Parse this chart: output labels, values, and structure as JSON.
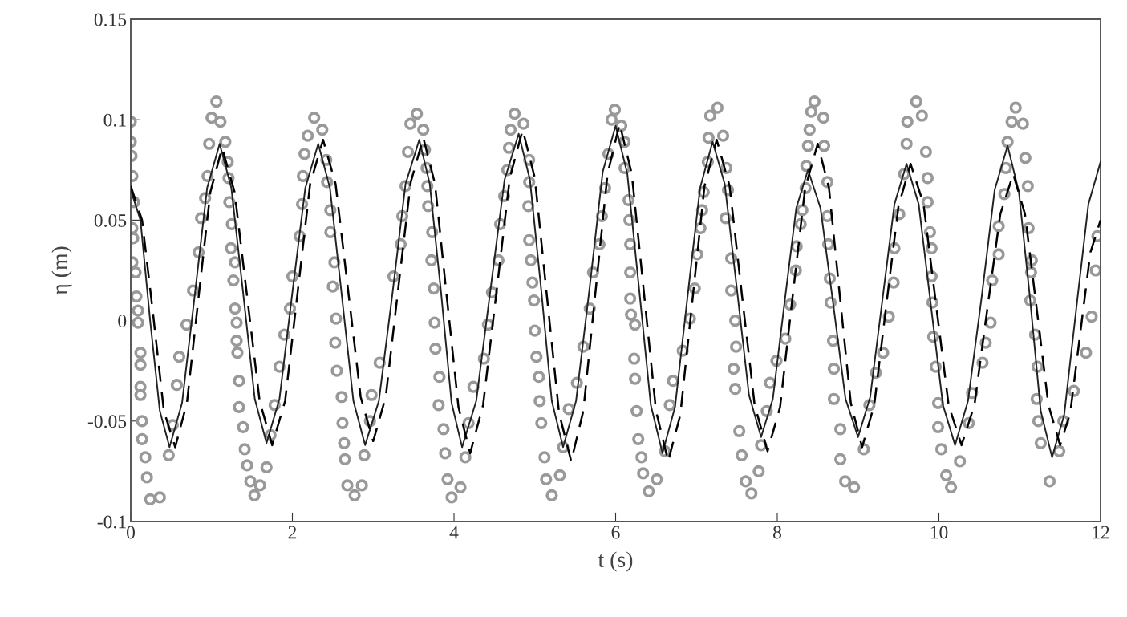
{
  "chart_data": {
    "type": "line",
    "xlabel": "t (s)",
    "ylabel": "η (m)",
    "xlim": [
      0,
      12
    ],
    "xticks": [
      0,
      2,
      4,
      6,
      8,
      10,
      12
    ],
    "ylim": [
      -0.1,
      0.15
    ],
    "yticks": [
      -0.1,
      -0.05,
      0,
      0.05,
      0.1,
      0.15
    ],
    "grid": false,
    "series": [
      {
        "type": "scatter",
        "marker": "circle",
        "color": "#999999",
        "x": [
          0,
          0.0,
          0.01,
          0.02,
          0.04,
          0.02,
          0.03,
          0.02,
          0.06,
          0.07,
          0.09,
          0.09,
          0.12,
          0.12,
          0.12,
          0.12,
          0.14,
          0.14,
          0.18,
          0.2,
          0.24,
          0.36,
          0.47,
          0.52,
          0.57,
          0.6,
          0.69,
          0.77,
          0.84,
          0.87,
          0.92,
          0.95,
          0.97,
          1.0,
          1.06,
          1.11,
          1.17,
          1.2,
          1.21,
          1.22,
          1.25,
          1.24,
          1.29,
          1.27,
          1.29,
          1.31,
          1.31,
          1.32,
          1.34,
          1.34,
          1.39,
          1.41,
          1.44,
          1.48,
          1.6,
          1.53,
          1.68,
          1.73,
          1.78,
          1.84,
          1.9,
          1.97,
          2.0,
          2.09,
          2.12,
          2.13,
          2.15,
          2.19,
          2.27,
          2.37,
          2.42,
          2.43,
          2.47,
          2.47,
          2.52,
          2.5,
          2.54,
          2.53,
          2.55,
          2.61,
          2.62,
          2.64,
          2.65,
          2.68,
          2.77,
          2.86,
          2.89,
          2.96,
          2.98,
          3.08,
          3.25,
          3.34,
          3.36,
          3.4,
          3.43,
          3.46,
          3.54,
          3.62,
          3.64,
          3.66,
          3.67,
          3.68,
          3.73,
          3.72,
          3.75,
          3.76,
          3.77,
          3.82,
          3.81,
          3.87,
          3.89,
          3.92,
          3.97,
          4.08,
          4.14,
          4.18,
          4.24,
          4.37,
          4.42,
          4.47,
          4.55,
          4.57,
          4.62,
          4.66,
          4.68,
          4.7,
          4.75,
          4.86,
          4.93,
          4.93,
          4.92,
          4.93,
          4.95,
          4.97,
          4.99,
          5.0,
          5.02,
          5.05,
          5.06,
          5.08,
          5.12,
          5.14,
          5.21,
          5.31,
          5.35,
          5.42,
          5.52,
          5.6,
          5.68,
          5.72,
          5.8,
          5.83,
          5.87,
          5.91,
          5.95,
          5.99,
          6.07,
          6.11,
          6.11,
          6.16,
          6.17,
          6.18,
          6.18,
          6.18,
          6.19,
          6.24,
          6.23,
          6.24,
          6.26,
          6.28,
          6.32,
          6.34,
          6.41,
          6.51,
          6.61,
          6.67,
          6.71,
          6.83,
          6.92,
          6.98,
          7.01,
          7.05,
          7.07,
          7.09,
          7.14,
          7.15,
          7.17,
          7.26,
          7.33,
          7.37,
          7.39,
          7.36,
          7.43,
          7.43,
          7.48,
          7.49,
          7.46,
          7.48,
          7.53,
          7.56,
          7.61,
          7.68,
          7.77,
          7.8,
          7.87,
          7.91,
          7.99,
          8.1,
          8.16,
          8.23,
          8.24,
          8.29,
          8.31,
          8.35,
          8.36,
          8.38,
          8.4,
          8.42,
          8.46,
          8.57,
          8.58,
          8.62,
          8.62,
          8.63,
          8.65,
          8.66,
          8.69,
          8.7,
          8.7,
          8.78,
          8.78,
          8.84,
          8.95,
          9.07,
          9.14,
          9.22,
          9.31,
          9.38,
          9.44,
          9.45,
          9.51,
          9.57,
          9.6,
          9.61,
          9.72,
          9.79,
          9.84,
          9.86,
          9.86,
          9.89,
          9.91,
          9.91,
          9.92,
          9.93,
          9.96,
          9.99,
          9.99,
          10.03,
          10.09,
          10.15,
          10.26,
          10.37,
          10.41,
          10.54,
          10.58,
          10.64,
          10.66,
          10.74,
          10.74,
          10.81,
          10.83,
          10.85,
          10.9,
          10.95,
          11.04,
          11.07,
          11.1,
          11.11,
          11.15,
          11.14,
          11.13,
          11.19,
          11.22,
          11.21,
          11.23,
          11.26,
          11.37,
          11.49,
          11.54,
          11.67,
          11.82,
          11.89,
          11.94,
          11.96
        ],
        "values": [
          0.099,
          0.089,
          0.082,
          0.072,
          0.059,
          0.046,
          0.041,
          0.029,
          0.024,
          0.012,
          0.005,
          -0.001,
          -0.016,
          -0.022,
          -0.033,
          -0.037,
          -0.05,
          -0.059,
          -0.068,
          -0.078,
          -0.089,
          -0.088,
          -0.067,
          -0.052,
          -0.032,
          -0.018,
          -0.002,
          0.015,
          0.034,
          0.051,
          0.061,
          0.072,
          0.088,
          0.101,
          0.109,
          0.099,
          0.089,
          0.079,
          0.071,
          0.059,
          0.048,
          0.036,
          0.029,
          0.02,
          0.006,
          -0.001,
          -0.01,
          -0.016,
          -0.03,
          -0.043,
          -0.053,
          -0.064,
          -0.072,
          -0.08,
          -0.082,
          -0.087,
          -0.073,
          -0.057,
          -0.042,
          -0.023,
          -0.007,
          0.006,
          0.022,
          0.042,
          0.058,
          0.072,
          0.083,
          0.092,
          0.101,
          0.095,
          0.08,
          0.069,
          0.055,
          0.044,
          0.029,
          0.017,
          0.001,
          -0.011,
          -0.025,
          -0.038,
          -0.051,
          -0.061,
          -0.069,
          -0.082,
          -0.087,
          -0.082,
          -0.067,
          -0.05,
          -0.037,
          -0.021,
          0.022,
          0.038,
          0.052,
          0.067,
          0.084,
          0.098,
          0.103,
          0.095,
          0.085,
          0.076,
          0.067,
          0.057,
          0.044,
          0.03,
          0.016,
          -0.001,
          -0.014,
          -0.028,
          -0.042,
          -0.054,
          -0.066,
          -0.079,
          -0.088,
          -0.083,
          -0.068,
          -0.051,
          -0.033,
          -0.019,
          -0.002,
          0.014,
          0.03,
          0.048,
          0.062,
          0.075,
          0.086,
          0.095,
          0.103,
          0.098,
          0.08,
          0.069,
          0.057,
          0.04,
          0.03,
          0.019,
          0.01,
          -0.005,
          -0.018,
          -0.028,
          -0.04,
          -0.051,
          -0.068,
          -0.079,
          -0.087,
          -0.077,
          -0.063,
          -0.044,
          -0.031,
          -0.013,
          0.006,
          0.024,
          0.038,
          0.052,
          0.066,
          0.083,
          0.1,
          0.105,
          0.097,
          0.089,
          0.076,
          0.06,
          0.05,
          0.038,
          0.024,
          0.011,
          0.003,
          -0.002,
          -0.019,
          -0.029,
          -0.045,
          -0.059,
          -0.068,
          -0.076,
          -0.085,
          -0.079,
          -0.065,
          -0.042,
          -0.03,
          -0.015,
          0.001,
          0.016,
          0.033,
          0.046,
          0.055,
          0.064,
          0.079,
          0.091,
          0.102,
          0.106,
          0.092,
          0.076,
          0.065,
          0.051,
          0.031,
          0.015,
          0.0,
          -0.013,
          -0.024,
          -0.034,
          -0.055,
          -0.067,
          -0.08,
          -0.086,
          -0.075,
          -0.062,
          -0.045,
          -0.031,
          -0.02,
          -0.009,
          0.008,
          0.025,
          0.037,
          0.048,
          0.055,
          0.066,
          0.077,
          0.087,
          0.095,
          0.104,
          0.109,
          0.101,
          0.087,
          0.069,
          0.052,
          0.038,
          0.021,
          0.009,
          -0.01,
          -0.024,
          -0.039,
          -0.054,
          -0.069,
          -0.08,
          -0.083,
          -0.064,
          -0.042,
          -0.026,
          -0.016,
          0.002,
          0.019,
          0.036,
          0.053,
          0.073,
          0.088,
          0.099,
          0.109,
          0.102,
          0.084,
          0.071,
          0.059,
          0.044,
          0.036,
          0.022,
          0.009,
          -0.008,
          -0.023,
          -0.041,
          -0.053,
          -0.064,
          -0.077,
          -0.083,
          -0.07,
          -0.051,
          -0.036,
          -0.021,
          -0.011,
          -0.001,
          0.02,
          0.033,
          0.047,
          0.063,
          0.076,
          0.089,
          0.099,
          0.106,
          0.098,
          0.081,
          0.067,
          0.046,
          0.03,
          0.024,
          0.01,
          -0.007,
          -0.023,
          -0.039,
          -0.05,
          -0.061,
          -0.08,
          -0.065,
          -0.05,
          -0.035,
          -0.016,
          0.002,
          0.025,
          0.042
        ]
      },
      {
        "type": "line",
        "line_style": "solid",
        "color": "#222222",
        "x": [
          0,
          0.12,
          0.24,
          0.36,
          0.48,
          0.635,
          0.79,
          0.945,
          1.1,
          1.245,
          1.39,
          1.535,
          1.68,
          1.84,
          2.0,
          2.16,
          2.32,
          2.465,
          2.61,
          2.755,
          2.9,
          3.07,
          3.24,
          3.4,
          3.57,
          3.7,
          3.84,
          3.97,
          4.1,
          4.275,
          4.45,
          4.625,
          4.8,
          4.94,
          5.08,
          5.21,
          5.35,
          5.51,
          5.68,
          5.84,
          6.0,
          6.145,
          6.29,
          6.435,
          6.58,
          6.735,
          6.89,
          7.045,
          7.2,
          7.35,
          7.5,
          7.65,
          7.8,
          7.945,
          8.09,
          8.235,
          8.38,
          8.535,
          8.69,
          8.845,
          9.0,
          9.15,
          9.3,
          9.45,
          9.6,
          9.75,
          9.9,
          10.05,
          10.2,
          10.36,
          10.53,
          10.69,
          10.85,
          10.99,
          11.13,
          11.26,
          11.4,
          11.55,
          11.7,
          11.85,
          12
        ],
        "values": [
          0.065,
          0.05,
          0.0,
          -0.045,
          -0.063,
          -0.041,
          0.012,
          0.066,
          0.088,
          0.066,
          0.014,
          -0.039,
          -0.061,
          -0.039,
          0.014,
          0.066,
          0.088,
          0.066,
          0.013,
          -0.04,
          -0.062,
          -0.04,
          0.014,
          0.068,
          0.09,
          0.068,
          0.014,
          -0.041,
          -0.063,
          -0.04,
          0.015,
          0.07,
          0.093,
          0.07,
          0.015,
          -0.04,
          -0.063,
          -0.04,
          0.017,
          0.074,
          0.097,
          0.073,
          0.016,
          -0.042,
          -0.066,
          -0.043,
          0.012,
          0.066,
          0.089,
          0.068,
          0.016,
          -0.037,
          -0.058,
          -0.039,
          0.009,
          0.056,
          0.075,
          0.056,
          0.009,
          -0.039,
          -0.058,
          -0.038,
          0.01,
          0.058,
          0.078,
          0.058,
          0.008,
          -0.042,
          -0.062,
          -0.04,
          0.012,
          0.065,
          0.087,
          0.064,
          0.01,
          -0.045,
          -0.068,
          -0.047,
          0.006,
          0.058,
          0.079
        ]
      },
      {
        "type": "line",
        "line_style": "dashed",
        "color": "#000000",
        "x": [
          0,
          0.14,
          0.28,
          0.41,
          0.55,
          0.695,
          0.84,
          0.985,
          1.13,
          1.285,
          1.44,
          1.595,
          1.75,
          1.91,
          2.065,
          2.22,
          2.38,
          2.535,
          2.69,
          2.845,
          3.0,
          3.155,
          3.31,
          3.465,
          3.62,
          3.765,
          3.91,
          4.055,
          4.2,
          4.36,
          4.525,
          4.69,
          4.85,
          5.0,
          5.15,
          5.3,
          5.45,
          5.6,
          5.75,
          5.9,
          6.05,
          6.2,
          6.35,
          6.5,
          6.65,
          6.8,
          6.95,
          7.1,
          7.25,
          7.41,
          7.565,
          7.72,
          7.88,
          8.035,
          8.19,
          8.345,
          8.5,
          8.64,
          8.775,
          8.91,
          9.05,
          9.2,
          9.35,
          9.5,
          9.65,
          9.81,
          9.965,
          10.12,
          10.28,
          10.44,
          10.6,
          10.76,
          10.92,
          11.065,
          11.21,
          11.355,
          11.5,
          11.625,
          11.75,
          11.875,
          12
        ],
        "values": [
          0.067,
          0.05,
          0.002,
          -0.045,
          -0.063,
          -0.041,
          0.012,
          0.064,
          0.086,
          0.064,
          0.012,
          -0.04,
          -0.062,
          -0.04,
          0.014,
          0.068,
          0.09,
          0.068,
          0.015,
          -0.038,
          -0.06,
          -0.038,
          0.016,
          0.069,
          0.091,
          0.068,
          0.012,
          -0.043,
          -0.066,
          -0.042,
          0.014,
          0.071,
          0.095,
          0.071,
          0.012,
          -0.046,
          -0.07,
          -0.045,
          0.014,
          0.073,
          0.098,
          0.073,
          0.014,
          -0.045,
          -0.07,
          -0.047,
          0.01,
          0.067,
          0.09,
          0.067,
          0.012,
          -0.042,
          -0.065,
          -0.043,
          0.012,
          0.066,
          0.088,
          0.066,
          0.012,
          -0.041,
          -0.063,
          -0.042,
          0.008,
          0.057,
          0.078,
          0.058,
          0.008,
          -0.042,
          -0.062,
          -0.042,
          0.006,
          0.053,
          0.073,
          0.053,
          0.006,
          -0.042,
          -0.062,
          -0.046,
          -0.006,
          0.034,
          0.05
        ]
      }
    ]
  }
}
